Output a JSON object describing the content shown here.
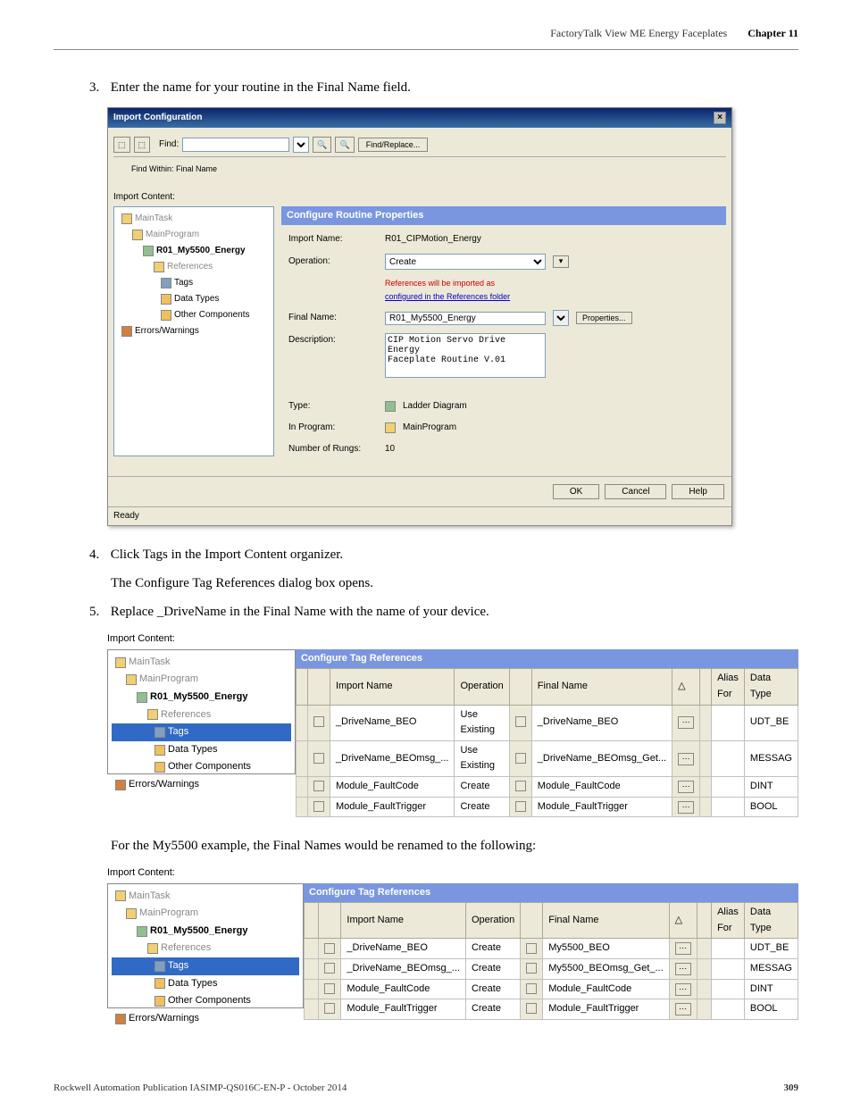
{
  "header": {
    "chapter_title": "FactoryTalk View ME Energy Faceplates",
    "chapter_num": "Chapter 11"
  },
  "steps": {
    "s3": "Enter the name for your routine in the Final Name field.",
    "s4": "Click Tags in the Import Content organizer.",
    "s4_desc": "The Configure Tag References dialog box opens.",
    "s5": "Replace _DriveName in the Final Name with the name of your device.",
    "example_text": "For the My5500 example, the Final Names would be renamed to the following:"
  },
  "import_dialog": {
    "title": "Import Configuration",
    "find_label": "Find:",
    "find_within": "Find Within: Final Name",
    "find_replace_btn": "Find/Replace...",
    "tree_label": "Import Content:",
    "tree": {
      "main_task": "MainTask",
      "main_program": "MainProgram",
      "energy": "R01_My5500_Energy",
      "references": "References",
      "tags": "Tags",
      "data_types": "Data Types",
      "other": "Other Components",
      "errors": "Errors/Warnings"
    },
    "props_header": "Configure Routine Properties",
    "import_name_label": "Import Name:",
    "import_name": "R01_CIPMotion_Energy",
    "operation_label": "Operation:",
    "operation": "Create",
    "references_note": "References will be imported as",
    "references_link": "configured in the References folder",
    "final_name_label": "Final Name:",
    "final_name": "R01_My5500_Energy",
    "properties_btn": "Properties...",
    "description_label": "Description:",
    "description": "CIP Motion Servo Drive Energy\nFaceplate Routine V.01",
    "type_label": "Type:",
    "type_value": "Ladder Diagram",
    "in_program_label": "In Program:",
    "in_program": "MainProgram",
    "rungs_label": "Number of Rungs:",
    "rungs": "10",
    "ok_btn": "OK",
    "cancel_btn": "Cancel",
    "help_btn": "Help",
    "statusbar": "Ready"
  },
  "tag_ref": {
    "import_content_label": "Import Content:",
    "panel_header": "Configure Tag References",
    "tree": {
      "main_task": "MainTask",
      "main_program": "MainProgram",
      "energy": "R01_My5500_Energy",
      "references": "References",
      "tags": "Tags",
      "data_types": "Data Types",
      "other": "Other Components",
      "errors": "Errors/Warnings"
    },
    "columns": {
      "import_name": "Import Name",
      "operation": "Operation",
      "final_name": "Final Name",
      "alias_for": "Alias For",
      "data_type": "Data Type"
    },
    "rows1": [
      {
        "import": "_DriveName_BEO",
        "op": "Use Existing",
        "final": "_DriveName_BEO",
        "type": "UDT_BE"
      },
      {
        "import": "_DriveName_BEOmsg_...",
        "op": "Use Existing",
        "final": "_DriveName_BEOmsg_Get...",
        "type": "MESSAG"
      },
      {
        "import": "Module_FaultCode",
        "op": "Create",
        "final": "Module_FaultCode",
        "type": "DINT"
      },
      {
        "import": "Module_FaultTrigger",
        "op": "Create",
        "final": "Module_FaultTrigger",
        "type": "BOOL"
      }
    ],
    "rows2": [
      {
        "import": "_DriveName_BEO",
        "op": "Create",
        "final": "My5500_BEO",
        "type": "UDT_BE"
      },
      {
        "import": "_DriveName_BEOmsg_...",
        "op": "Create",
        "final": "My5500_BEOmsg_Get_...",
        "type": "MESSAG"
      },
      {
        "import": "Module_FaultCode",
        "op": "Create",
        "final": "Module_FaultCode",
        "type": "DINT"
      },
      {
        "import": "Module_FaultTrigger",
        "op": "Create",
        "final": "Module_FaultTrigger",
        "type": "BOOL"
      }
    ]
  },
  "footer": {
    "publication": "Rockwell Automation Publication IASIMP-QS016C-EN-P - October 2014",
    "page": "309"
  }
}
